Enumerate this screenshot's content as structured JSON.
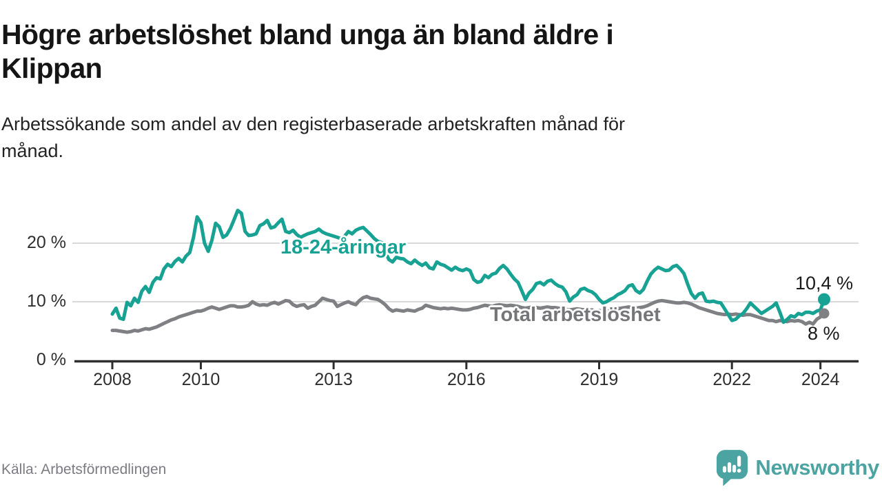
{
  "header": {
    "title_lines": [
      "Högre arbetslöshet bland unga än bland äldre i",
      "Klippan"
    ],
    "subtitle_lines": [
      "Arbetssökande som andel av den registerbaserade arbetskraften månad för",
      "månad."
    ]
  },
  "chart_data": {
    "type": "line",
    "unit": "%",
    "x_start": "2008-01",
    "x_end": "2024-02",
    "frequency": "monthly",
    "grid": "horizontal-only",
    "ylim": [
      0,
      27
    ],
    "y_ticks": [
      {
        "value": 0,
        "label": "0 %"
      },
      {
        "value": 10,
        "label": "10 %"
      },
      {
        "value": 20,
        "label": "20 %"
      }
    ],
    "x_ticks": [
      {
        "label": "2008",
        "month_index": 0
      },
      {
        "label": "2010",
        "month_index": 24
      },
      {
        "label": "2013",
        "month_index": 60
      },
      {
        "label": "2016",
        "month_index": 96
      },
      {
        "label": "2019",
        "month_index": 132
      },
      {
        "label": "2022",
        "month_index": 168
      },
      {
        "label": "2024",
        "month_index": 192
      }
    ],
    "series": [
      {
        "name": "18-24-åringar",
        "color": "#18a294",
        "end_label": "10,4 %",
        "last_value": 10.4,
        "values": [
          7.9,
          8.9,
          7.2,
          7.0,
          9.9,
          9.3,
          10.6,
          9.9,
          11.8,
          12.6,
          11.6,
          13.3,
          14.1,
          13.9,
          15.6,
          16.4,
          16.0,
          16.9,
          17.4,
          16.8,
          17.8,
          18.4,
          21.0,
          24.5,
          23.5,
          20.0,
          18.6,
          20.5,
          23.4,
          22.8,
          21.0,
          21.4,
          22.5,
          24.0,
          25.6,
          25.1,
          22.0,
          21.3,
          21.4,
          21.6,
          23.0,
          23.3,
          23.9,
          22.6,
          22.8,
          23.5,
          24.1,
          22.0,
          21.8,
          22.2,
          21.5,
          21.0,
          21.3,
          21.6,
          21.8,
          22.0,
          22.4,
          21.9,
          21.6,
          21.4,
          21.2,
          21.0,
          20.8,
          21.2,
          22.0,
          21.6,
          22.2,
          22.5,
          22.7,
          22.1,
          21.5,
          20.8,
          20.3,
          20.1,
          18.5,
          17.2,
          16.8,
          17.6,
          17.4,
          17.3,
          16.8,
          16.5,
          17.1,
          16.6,
          16.2,
          16.6,
          15.8,
          15.6,
          16.8,
          16.4,
          16.2,
          15.8,
          15.4,
          15.9,
          15.5,
          15.3,
          15.6,
          15.3,
          13.8,
          13.3,
          13.5,
          14.5,
          14.1,
          14.7,
          14.9,
          15.7,
          16.2,
          15.6,
          14.7,
          13.9,
          13.3,
          11.9,
          10.4,
          11.5,
          12.1,
          13.1,
          13.3,
          12.9,
          13.5,
          13.7,
          13.1,
          12.7,
          12.5,
          11.7,
          10.1,
          10.8,
          11.2,
          12.1,
          12.3,
          11.9,
          11.7,
          11.2,
          10.4,
          9.8,
          10.0,
          10.4,
          10.7,
          11.2,
          11.5,
          11.9,
          12.7,
          12.9,
          11.9,
          11.5,
          12.1,
          13.5,
          14.7,
          15.4,
          15.9,
          15.6,
          15.3,
          15.4,
          16.0,
          16.2,
          15.6,
          14.8,
          13.0,
          11.4,
          10.6,
          11.3,
          11.5,
          10.1,
          10.0,
          10.1,
          9.9,
          9.8,
          8.8,
          7.8,
          6.8,
          7.0,
          7.6,
          8.0,
          8.8,
          9.8,
          9.2,
          8.6,
          8.0,
          8.4,
          8.8,
          9.2,
          9.8,
          8.2,
          6.5,
          7.0,
          7.6,
          7.4,
          8.0,
          7.8,
          8.2,
          8.2,
          8.0,
          8.4,
          8.6,
          10.4
        ]
      },
      {
        "name": "Total arbetslöshet",
        "color": "#7f8084",
        "end_label": "8 %",
        "last_value": 8.0,
        "values": [
          5.1,
          5.1,
          5.0,
          4.9,
          4.8,
          4.9,
          5.1,
          5.0,
          5.2,
          5.4,
          5.3,
          5.5,
          5.7,
          6.0,
          6.3,
          6.6,
          6.9,
          7.1,
          7.4,
          7.6,
          7.8,
          8.0,
          8.2,
          8.4,
          8.4,
          8.6,
          8.9,
          9.1,
          8.9,
          8.7,
          8.9,
          9.1,
          9.3,
          9.3,
          9.1,
          9.1,
          9.2,
          9.4,
          10.0,
          9.6,
          9.4,
          9.5,
          9.4,
          9.7,
          9.9,
          9.6,
          9.9,
          10.2,
          10.1,
          9.5,
          9.2,
          9.4,
          9.5,
          8.9,
          9.2,
          9.4,
          10.0,
          10.6,
          10.4,
          10.2,
          10.1,
          9.2,
          9.5,
          9.8,
          10.0,
          9.7,
          9.5,
          10.2,
          10.7,
          10.9,
          10.6,
          10.5,
          10.4,
          10.0,
          9.5,
          8.8,
          8.4,
          8.6,
          8.5,
          8.4,
          8.6,
          8.5,
          8.4,
          8.7,
          8.9,
          9.4,
          9.2,
          9.0,
          8.9,
          8.8,
          8.9,
          8.8,
          8.9,
          8.8,
          8.7,
          8.6,
          8.6,
          8.7,
          8.9,
          9.0,
          9.2,
          9.4,
          9.3,
          9.2,
          9.4,
          9.5,
          9.4,
          9.3,
          9.4,
          9.3,
          9.2,
          9.0,
          8.9,
          9.0,
          9.1,
          9.0,
          8.9,
          9.0,
          9.1,
          9.0,
          9.0,
          8.9,
          8.8,
          8.7,
          8.6,
          8.7,
          8.8,
          8.7,
          8.6,
          8.5,
          8.6,
          8.5,
          8.5,
          8.4,
          8.5,
          8.6,
          8.7,
          8.8,
          8.9,
          9.0,
          9.1,
          9.0,
          8.9,
          9.0,
          9.1,
          9.3,
          9.6,
          9.9,
          10.1,
          10.2,
          10.1,
          10.0,
          9.9,
          9.8,
          9.8,
          9.9,
          9.8,
          9.6,
          9.3,
          9.0,
          8.8,
          8.6,
          8.4,
          8.2,
          8.0,
          7.9,
          7.8,
          7.9,
          7.8,
          7.9,
          7.8,
          7.7,
          7.8,
          7.8,
          7.6,
          7.4,
          7.2,
          7.0,
          6.8,
          6.8,
          6.6,
          6.8,
          6.7,
          6.6,
          6.8,
          6.7,
          6.8,
          6.6,
          6.2,
          6.5,
          6.2,
          7.0,
          7.4,
          8.0
        ]
      }
    ]
  },
  "colors": {
    "grid": "#d9d9d9",
    "axis": "#2e2e2e",
    "accent_teal": "#18a294",
    "line_gray": "#7f8084",
    "brand_teal": "#4ba3a2"
  },
  "footer": {
    "source": "Källa: Arbetsförmedlingen",
    "brand": "Newsworthy"
  }
}
